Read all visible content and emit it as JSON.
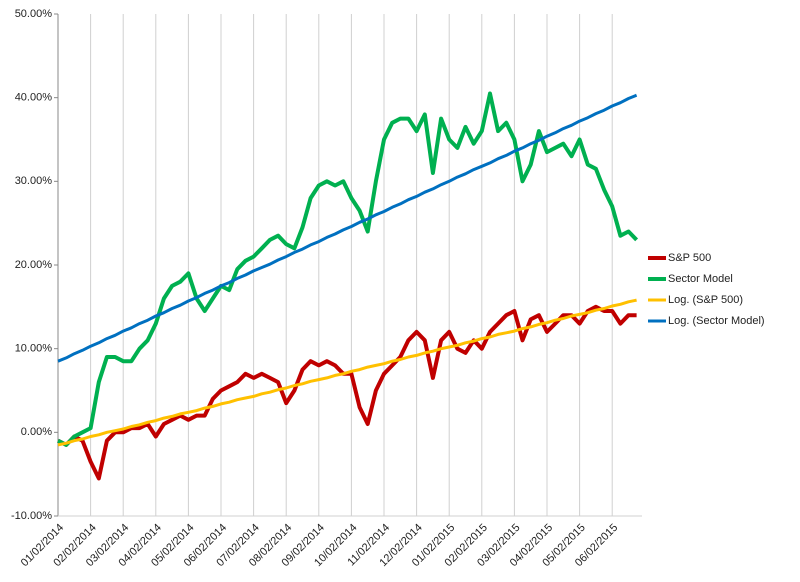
{
  "chart_data": {
    "type": "line",
    "categories": [
      "01/02/2014",
      null,
      null,
      null,
      "02/02/2014",
      null,
      null,
      null,
      "03/02/2014",
      null,
      null,
      null,
      "04/02/2014",
      null,
      null,
      null,
      "05/02/2014",
      null,
      null,
      null,
      "06/02/2014",
      null,
      null,
      null,
      "07/02/2014",
      null,
      null,
      null,
      "08/02/2014",
      null,
      null,
      null,
      "09/02/2014",
      null,
      null,
      null,
      "10/02/2014",
      null,
      null,
      null,
      "11/02/2014",
      null,
      null,
      null,
      "12/02/2014",
      null,
      null,
      null,
      "01/02/2015",
      null,
      null,
      null,
      "02/02/2015",
      null,
      null,
      null,
      "03/02/2015",
      null,
      null,
      null,
      "04/02/2015",
      null,
      null,
      null,
      "05/02/2015",
      null,
      null,
      null,
      "06/02/2015",
      null,
      null,
      null
    ],
    "series": [
      {
        "name": "S&P 500",
        "color": "#c00000",
        "width": 4,
        "values": [
          -1,
          -1.5,
          -0.5,
          -1,
          -3.5,
          -5.5,
          -1,
          0,
          0,
          0.5,
          0.5,
          1,
          -0.5,
          1,
          1.5,
          2,
          1.5,
          2,
          2,
          4,
          5,
          5.5,
          6,
          7,
          6.5,
          7,
          6.5,
          6,
          3.5,
          5,
          7.5,
          8.5,
          8,
          8.5,
          8,
          7,
          7,
          3,
          1,
          5,
          7,
          8,
          9,
          11,
          12,
          11,
          6.5,
          11,
          12,
          10,
          9.5,
          11,
          10,
          12,
          13,
          14,
          14.5,
          11,
          13.5,
          14,
          12,
          13,
          14,
          14,
          13,
          14.5,
          15,
          14.5,
          14.5,
          13,
          14,
          14
        ]
      },
      {
        "name": "Sector Model",
        "color": "#00b050",
        "width": 4,
        "values": [
          -1,
          -1.5,
          -0.5,
          0,
          0.5,
          6,
          9,
          9,
          8.5,
          8.5,
          10,
          11,
          13,
          16,
          17.5,
          18,
          19,
          16,
          14.5,
          16,
          17.5,
          17,
          19.5,
          20.5,
          21,
          22,
          23,
          23.5,
          22.5,
          22,
          24.5,
          28,
          29.5,
          30,
          29.5,
          30,
          28,
          26.5,
          24,
          30,
          35,
          37,
          37.5,
          37.5,
          36,
          38,
          31,
          37.5,
          35,
          34,
          36.5,
          34.5,
          36,
          40.5,
          36,
          37,
          35,
          30,
          32,
          36,
          33.5,
          34,
          34.5,
          33,
          35,
          32,
          31.5,
          29,
          27,
          23.5,
          24,
          23
        ]
      },
      {
        "name": "Log. (S&P 500)",
        "color": "#ffc000",
        "width": 3,
        "values": [
          -1.5,
          -1.3,
          -1.0,
          -0.8,
          -0.5,
          -0.3,
          0.0,
          0.2,
          0.4,
          0.7,
          0.9,
          1.2,
          1.4,
          1.7,
          1.9,
          2.2,
          2.4,
          2.6,
          2.9,
          3.1,
          3.4,
          3.6,
          3.9,
          4.1,
          4.3,
          4.6,
          4.8,
          5.1,
          5.3,
          5.6,
          5.8,
          6.1,
          6.3,
          6.5,
          6.8,
          7.0,
          7.3,
          7.5,
          7.8,
          8.0,
          8.2,
          8.5,
          8.7,
          9.0,
          9.2,
          9.5,
          9.7,
          10.0,
          10.2,
          10.4,
          10.7,
          10.9,
          11.2,
          11.4,
          11.7,
          11.9,
          12.1,
          12.4,
          12.6,
          12.9,
          13.1,
          13.4,
          13.6,
          13.9,
          14.1,
          14.3,
          14.6,
          14.8,
          15.1,
          15.3,
          15.6,
          15.8
        ]
      },
      {
        "name": "Log. (Sector Model)",
        "color": "#0070c0",
        "width": 3,
        "values": [
          8.5,
          8.9,
          9.4,
          9.8,
          10.3,
          10.7,
          11.2,
          11.6,
          12.1,
          12.5,
          13.0,
          13.4,
          13.9,
          14.3,
          14.8,
          15.2,
          15.7,
          16.1,
          16.6,
          17.0,
          17.5,
          17.9,
          18.4,
          18.8,
          19.3,
          19.7,
          20.1,
          20.6,
          21.0,
          21.5,
          21.9,
          22.4,
          22.8,
          23.3,
          23.7,
          24.2,
          24.6,
          25.1,
          25.5,
          26.0,
          26.4,
          26.9,
          27.3,
          27.8,
          28.2,
          28.7,
          29.1,
          29.6,
          30.0,
          30.5,
          30.9,
          31.4,
          31.8,
          32.2,
          32.7,
          33.1,
          33.6,
          34.0,
          34.5,
          34.9,
          35.4,
          35.8,
          36.3,
          36.7,
          37.2,
          37.6,
          38.1,
          38.5,
          39.0,
          39.4,
          39.9,
          40.3
        ]
      }
    ],
    "ylim": [
      -10,
      50
    ],
    "yticks": [
      {
        "value": -10,
        "label": "-10.00%"
      },
      {
        "value": 0,
        "label": "0.00%"
      },
      {
        "value": 10,
        "label": "10.00%"
      },
      {
        "value": 20,
        "label": "20.00%"
      },
      {
        "value": 30,
        "label": "30.00%"
      },
      {
        "value": 40,
        "label": "40.00%"
      },
      {
        "value": 50,
        "label": "50.00%"
      }
    ],
    "xgrid": true,
    "legend": "right"
  }
}
